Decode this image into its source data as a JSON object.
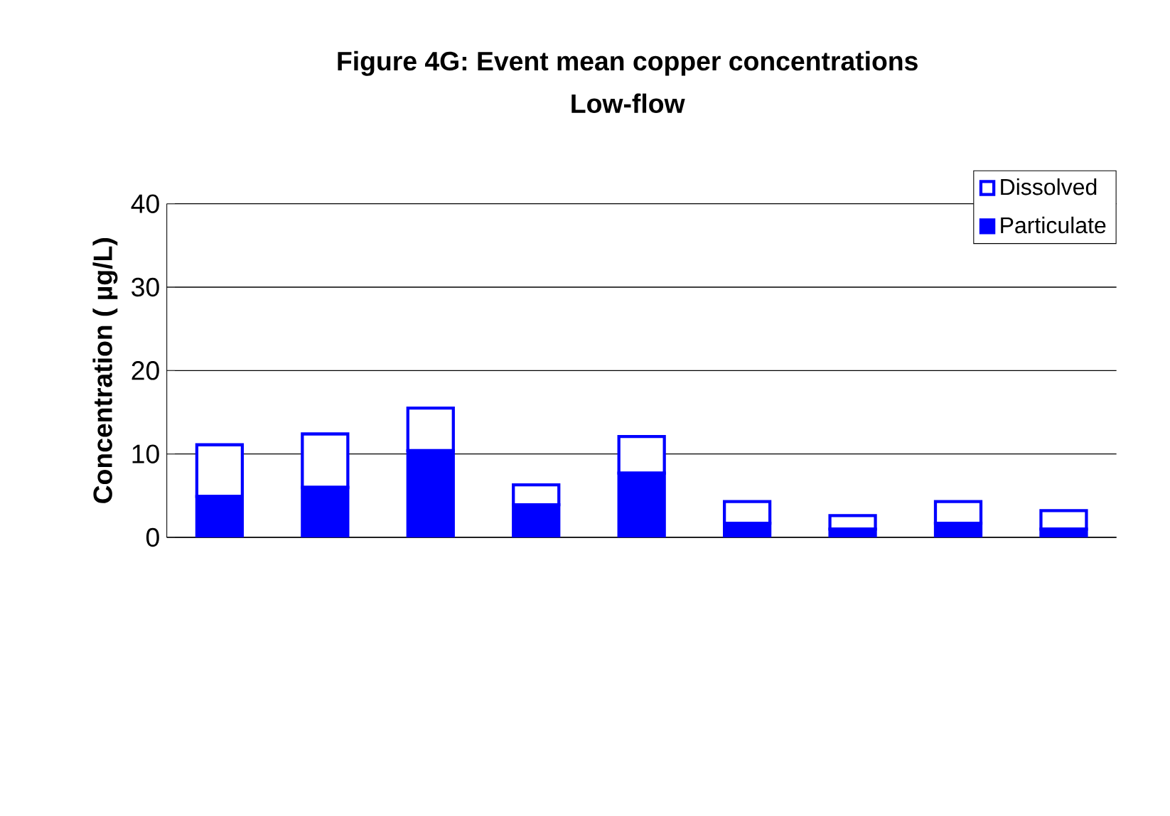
{
  "chart_data": {
    "type": "bar",
    "title": "Figure 4G: Event mean copper concentrations",
    "subtitle": "Low-flow",
    "ylabel": "Concentration ( µg/L)",
    "categories": [
      null,
      null,
      null,
      null,
      null,
      null,
      null,
      null,
      null
    ],
    "stacked": true,
    "series": [
      {
        "name": "Particulate",
        "color": "#0000ff",
        "values": [
          4.9,
          6.0,
          10.4,
          3.9,
          7.7,
          1.7,
          1.0,
          1.7,
          1.0
        ]
      },
      {
        "name": "Dissolved",
        "color": "#ffffff",
        "values": [
          6.2,
          6.4,
          5.1,
          2.4,
          4.4,
          2.6,
          1.6,
          2.6,
          2.2
        ]
      }
    ],
    "ylim": [
      0,
      40
    ],
    "yticks": [
      0,
      10,
      20,
      30,
      40
    ],
    "grid": "y",
    "legend": "top right",
    "tick_labels": "y"
  }
}
